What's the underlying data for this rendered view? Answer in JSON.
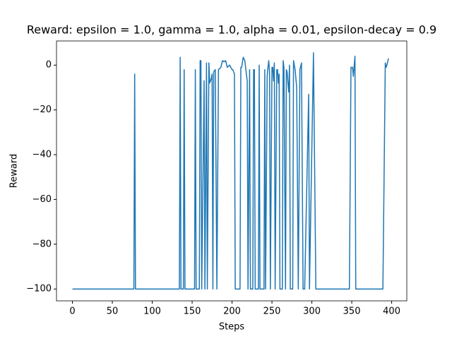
{
  "chart_data": {
    "type": "line",
    "title": "Reward: epsilon = 1.0, gamma = 1.0, alpha = 0.01, epsilon-decay = 0.9",
    "x_label": "Steps",
    "y_label": "Reward",
    "x": [
      0,
      77,
      78,
      79,
      134,
      135,
      136,
      139,
      140,
      141,
      153,
      154,
      155,
      159,
      160,
      161,
      162,
      165,
      166,
      168,
      169,
      171,
      172,
      174,
      175,
      176,
      177,
      179,
      181,
      183,
      186,
      188,
      190,
      192,
      194,
      197,
      200,
      201,
      203,
      204,
      210,
      211,
      212,
      214,
      216,
      217,
      219,
      220,
      222,
      223,
      226,
      227,
      228,
      229,
      233,
      234,
      235,
      240,
      241,
      242,
      244,
      245,
      246,
      247,
      248,
      250,
      251,
      252,
      253,
      254,
      256,
      257,
      258,
      259,
      260,
      263,
      264,
      265,
      267,
      268,
      269,
      270,
      271,
      272,
      273,
      276,
      277,
      279,
      281,
      283,
      285,
      287,
      289,
      290,
      291,
      296,
      297,
      302,
      305,
      347,
      349,
      351,
      352,
      354,
      355,
      389,
      392,
      393,
      394,
      396
    ],
    "series": [
      {
        "name": "Reward",
        "color": "#1f77b4",
        "values": [
          -100,
          -100,
          -4,
          -100,
          -100,
          3.5,
          -100,
          -100,
          -2,
          -100,
          -100,
          -2,
          -100,
          -100,
          2,
          2,
          -100,
          -7,
          -100,
          1,
          -100,
          1,
          -8,
          -6,
          -4,
          -100,
          -3,
          -2,
          -100,
          -2,
          -1,
          2,
          1.5,
          2,
          -1,
          0,
          -2,
          -2,
          -4,
          -100,
          -100,
          -1,
          -1,
          3.5,
          2,
          -1,
          -7,
          -100,
          -2,
          -100,
          -100,
          -2,
          -2,
          -100,
          -100,
          0,
          -100,
          -100,
          -2,
          -100,
          -5,
          -1,
          2,
          -3,
          -100,
          -1,
          -1,
          -7,
          1,
          -100,
          -2,
          -2,
          -8,
          -4,
          -100,
          -100,
          2,
          -1,
          -100,
          -2,
          -3,
          -8,
          -12,
          0,
          -100,
          -100,
          2,
          -2,
          -10,
          -100,
          -2,
          1,
          -100,
          -100,
          -100,
          -13,
          -100,
          5.5,
          -100,
          -100,
          -1,
          -1,
          -5,
          4,
          -100,
          -100,
          1,
          -1,
          0,
          3
        ]
      }
    ],
    "xlim": [
      -19.95,
      418.95
    ],
    "ylim": [
      -105.3,
      10.8
    ],
    "xticks": [
      0,
      50,
      100,
      150,
      200,
      250,
      300,
      350,
      400
    ],
    "yticks": [
      {
        "value": -100,
        "label": "−100"
      },
      {
        "value": -80,
        "label": "−80"
      },
      {
        "value": -60,
        "label": "−60"
      },
      {
        "value": -40,
        "label": "−40"
      },
      {
        "value": -20,
        "label": "−20"
      },
      0
    ]
  }
}
